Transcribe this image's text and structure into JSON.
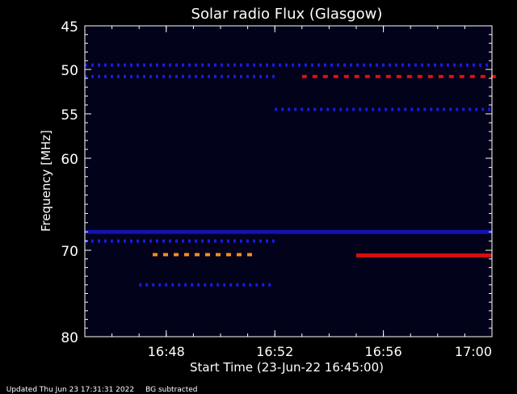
{
  "chart_data": {
    "type": "heatmap",
    "title": "Solar radio Flux (Glasgow)",
    "xlabel": "Start Time (23-Jun-22 16:45:00)",
    "ylabel": "Frequency [MHz]",
    "x_ticks": [
      "16:48",
      "16:52",
      "16:56",
      "17:00"
    ],
    "y_ticks": [
      "45",
      "50",
      "55",
      "60",
      "70",
      "80"
    ],
    "xlim": [
      "16:45",
      "17:00"
    ],
    "ylim": [
      45,
      80
    ],
    "colors": {
      "background": "#000000",
      "plot": "#02021a",
      "weak": "#1a1ae6",
      "strong": "#e01010",
      "hot": "#ff8a20"
    },
    "bands": [
      {
        "freq": 49.5,
        "start": "16:45",
        "end": "17:00",
        "intensity": "weak",
        "dashed": true
      },
      {
        "freq": 50.8,
        "start": "16:45",
        "end": "16:52",
        "intensity": "weak",
        "dashed": true
      },
      {
        "freq": 50.8,
        "start": "16:53",
        "end": "17:00",
        "intensity": "strong",
        "dashed": true
      },
      {
        "freq": 54.5,
        "start": "16:52",
        "end": "17:00",
        "intensity": "weak",
        "dashed": true
      },
      {
        "freq": 68.0,
        "start": "16:45",
        "end": "17:00",
        "intensity": "weak",
        "dashed": false
      },
      {
        "freq": 69.0,
        "start": "16:45",
        "end": "16:52",
        "intensity": "weak",
        "dashed": true
      },
      {
        "freq": 70.5,
        "start": "16:47.5",
        "end": "16:51.3",
        "intensity": "hot",
        "dashed": true
      },
      {
        "freq": 70.6,
        "start": "16:55",
        "end": "17:00",
        "intensity": "strong",
        "dashed": false
      },
      {
        "freq": 74.0,
        "start": "16:47",
        "end": "16:52",
        "intensity": "weak",
        "dashed": true
      }
    ]
  },
  "footer": {
    "updated": "Updated Thu Jun 23 17:31:31 2022",
    "mode": "BG subtracted"
  }
}
